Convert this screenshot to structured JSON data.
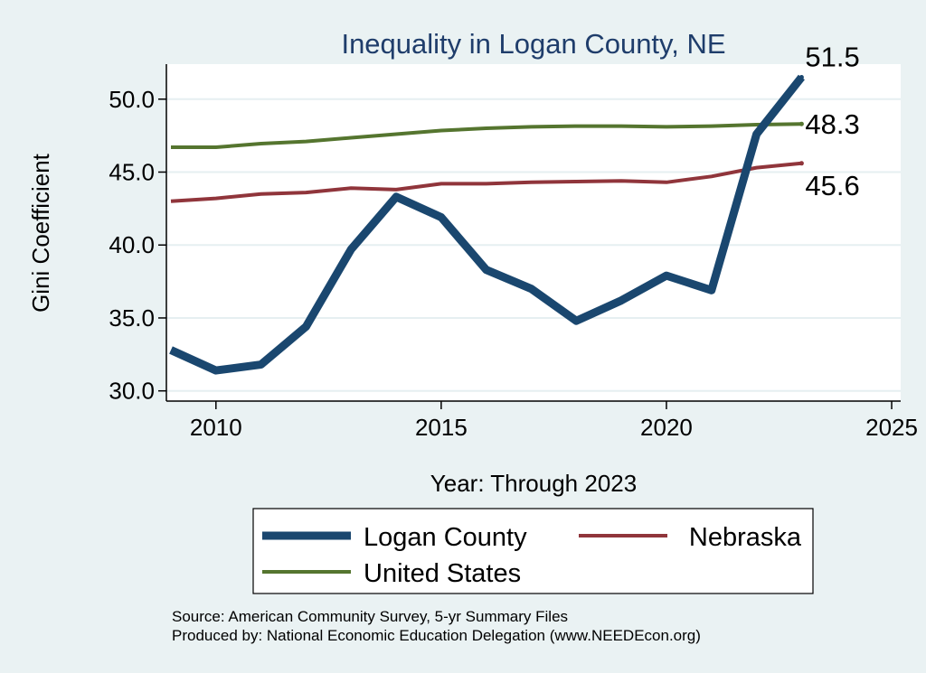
{
  "chart_data": {
    "type": "line",
    "title": "Inequality in Logan County, NE",
    "xlabel": "Year: Through 2023",
    "ylabel": "Gini Coefficient",
    "xlim": [
      2008.9,
      2025.2
    ],
    "ylim": [
      29.3,
      52.4
    ],
    "xticks": [
      2010,
      2015,
      2020,
      2025
    ],
    "yticks": [
      30.0,
      35.0,
      40.0,
      45.0,
      50.0
    ],
    "ytick_labels": [
      "30.0",
      "35.0",
      "40.0",
      "45.0",
      "50.0"
    ],
    "grid": true,
    "x": [
      2009,
      2010,
      2011,
      2012,
      2013,
      2014,
      2015,
      2016,
      2017,
      2018,
      2019,
      2020,
      2021,
      2022,
      2023
    ],
    "series": [
      {
        "name": "Logan County",
        "color": "#1a476f",
        "values": [
          32.8,
          31.4,
          31.8,
          34.4,
          39.7,
          43.3,
          41.9,
          38.3,
          37.0,
          34.8,
          36.2,
          37.9,
          36.9,
          47.6,
          51.5
        ],
        "end_label": "51.5"
      },
      {
        "name": "Nebraska",
        "color": "#90353b",
        "values": [
          43.0,
          43.2,
          43.5,
          43.6,
          43.9,
          43.8,
          44.2,
          44.2,
          44.3,
          44.35,
          44.4,
          44.3,
          44.7,
          45.3,
          45.6
        ],
        "end_label": "45.6"
      },
      {
        "name": "United States",
        "color": "#55752f",
        "values": [
          46.7,
          46.7,
          46.95,
          47.1,
          47.35,
          47.6,
          47.85,
          48.0,
          48.1,
          48.15,
          48.15,
          48.1,
          48.15,
          48.25,
          48.3
        ],
        "end_label": "48.3"
      }
    ],
    "legend": [
      {
        "name": "Logan County",
        "color": "#1a476f"
      },
      {
        "name": "Nebraska",
        "color": "#90353b"
      },
      {
        "name": "United States",
        "color": "#55752f"
      }
    ],
    "legend_position": "bottom",
    "notes": [
      "Source: American Community Survey, 5-yr Summary Files",
      "Produced by: National Economic Education Delegation (www.NEEDEcon.org)"
    ]
  }
}
